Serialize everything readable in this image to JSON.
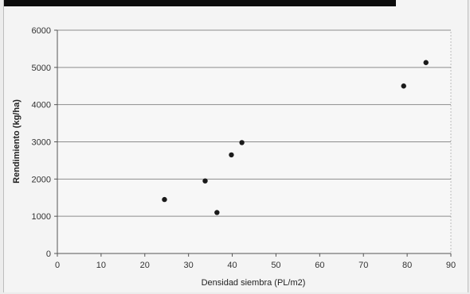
{
  "chart_data": {
    "type": "scatter",
    "xlabel": "Densidad siembra (PL/m2)",
    "ylabel": "Rendimiento (kg/ha)",
    "xlim": [
      0,
      90
    ],
    "ylim": [
      0,
      6000
    ],
    "xticks": [
      "0",
      "10",
      "20",
      "30",
      "40",
      "50",
      "60",
      "70",
      "80",
      "90"
    ],
    "yticks": [
      "0",
      "1000",
      "2000",
      "3000",
      "4000",
      "5000",
      "6000"
    ],
    "grid": "horizontal",
    "legend": "none",
    "points": [
      {
        "x": 24.5,
        "y": 1450
      },
      {
        "x": 33.8,
        "y": 1950
      },
      {
        "x": 36.5,
        "y": 1100
      },
      {
        "x": 39.8,
        "y": 2650
      },
      {
        "x": 42.2,
        "y": 2980
      },
      {
        "x": 79.2,
        "y": 4500
      },
      {
        "x": 84.3,
        "y": 5130
      }
    ],
    "colors": {
      "marker": "#1a1a1a",
      "grid": "#8c8c8c",
      "axis": "#555555"
    }
  }
}
